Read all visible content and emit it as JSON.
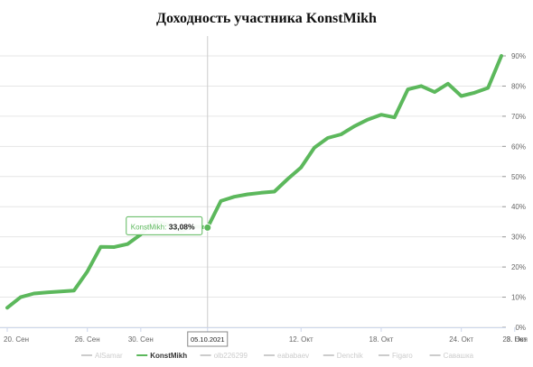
{
  "chart_data": {
    "type": "line",
    "title": "Доходность участника KonstMikh",
    "xlabel": "",
    "ylabel": "",
    "ylim": [
      0,
      90
    ],
    "grid": true,
    "y_ticks": [
      0,
      10,
      20,
      30,
      40,
      50,
      60,
      70,
      80,
      90
    ],
    "y_tick_labels": [
      "0%",
      "10%",
      "20%",
      "30%",
      "40%",
      "50%",
      "60%",
      "70%",
      "80%",
      "90%"
    ],
    "x_ticks": [
      {
        "date": "2021-09-20",
        "label": "20. Сен"
      },
      {
        "date": "2021-09-26",
        "label": "26. Сен"
      },
      {
        "date": "2021-09-30",
        "label": "30. Сен"
      },
      {
        "date": "2021-10-05",
        "label": "5. Окт"
      },
      {
        "date": "2021-10-12",
        "label": "12. Окт"
      },
      {
        "date": "2021-10-18",
        "label": "18. Окт"
      },
      {
        "date": "2021-10-24",
        "label": "24. Окт"
      },
      {
        "date": "2021-10-28",
        "label": "28. Окт"
      },
      {
        "date": "2021-11-03",
        "label": "3. Ноя"
      }
    ],
    "series": [
      {
        "name": "KonstMikh",
        "color": "#5cb85c",
        "points": [
          {
            "date": "2021-09-20",
            "y": 6.5
          },
          {
            "date": "2021-09-21",
            "y": 10
          },
          {
            "date": "2021-09-22",
            "y": 11.2
          },
          {
            "date": "2021-09-23",
            "y": 11.6
          },
          {
            "date": "2021-09-24",
            "y": 11.9
          },
          {
            "date": "2021-09-25",
            "y": 12.2
          },
          {
            "date": "2021-09-26",
            "y": 18.5
          },
          {
            "date": "2021-09-27",
            "y": 26.7
          },
          {
            "date": "2021-09-28",
            "y": 26.6
          },
          {
            "date": "2021-09-29",
            "y": 27.6
          },
          {
            "date": "2021-09-30",
            "y": 30.8
          },
          {
            "date": "2021-10-01",
            "y": 35.3
          },
          {
            "date": "2021-10-02",
            "y": 34.1
          },
          {
            "date": "2021-10-03",
            "y": 31.9
          },
          {
            "date": "2021-10-04",
            "y": 33.5
          },
          {
            "date": "2021-10-05",
            "y": 33.08
          },
          {
            "date": "2021-10-06",
            "y": 41.9
          },
          {
            "date": "2021-10-07",
            "y": 43.3
          },
          {
            "date": "2021-10-08",
            "y": 44.1
          },
          {
            "date": "2021-10-09",
            "y": 44.6
          },
          {
            "date": "2021-10-10",
            "y": 45.0
          },
          {
            "date": "2021-10-11",
            "y": 49.2
          },
          {
            "date": "2021-10-12",
            "y": 53.0
          },
          {
            "date": "2021-10-13",
            "y": 59.6
          },
          {
            "date": "2021-10-14",
            "y": 62.8
          },
          {
            "date": "2021-10-15",
            "y": 64.0
          },
          {
            "date": "2021-10-16",
            "y": 66.7
          },
          {
            "date": "2021-10-17",
            "y": 68.9
          },
          {
            "date": "2021-10-18",
            "y": 70.5
          },
          {
            "date": "2021-10-19",
            "y": 69.6
          },
          {
            "date": "2021-10-20",
            "y": 78.9
          },
          {
            "date": "2021-10-21",
            "y": 80.0
          },
          {
            "date": "2021-10-22",
            "y": 78.0
          },
          {
            "date": "2021-10-23",
            "y": 80.8
          },
          {
            "date": "2021-10-24",
            "y": 76.7
          },
          {
            "date": "2021-10-25",
            "y": 77.8
          },
          {
            "date": "2021-10-26",
            "y": 79.4
          },
          {
            "date": "2021-10-27",
            "y": 90.0
          }
        ]
      }
    ],
    "tooltip": {
      "date_label": "05.10.2021",
      "series_label": "KonstMikh:",
      "value_label": "33,08%"
    },
    "legend": {
      "placement": "bottom",
      "items": [
        {
          "name": "AlSamar",
          "active": false
        },
        {
          "name": "KonstMikh",
          "active": true
        },
        {
          "name": "olb226299",
          "active": false
        },
        {
          "name": "eababaev",
          "active": false
        },
        {
          "name": "Denchik",
          "active": false
        },
        {
          "name": "Figaro",
          "active": false
        },
        {
          "name": "Савашка",
          "active": false
        }
      ]
    }
  },
  "colors": {
    "series": "#5cb85c",
    "legend_inactive": "#cccccc",
    "legend_active": "#333333"
  }
}
